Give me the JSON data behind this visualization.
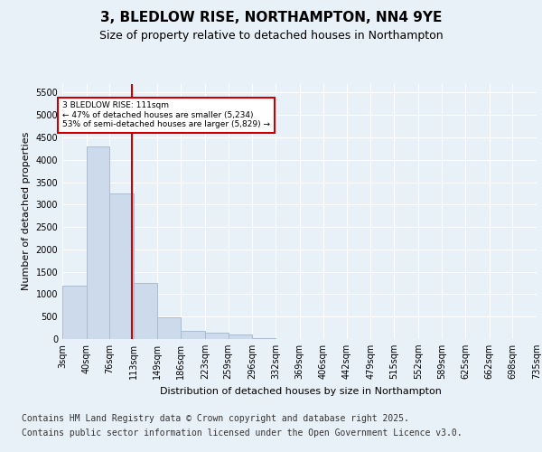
{
  "title_line1": "3, BLEDLOW RISE, NORTHAMPTON, NN4 9YE",
  "title_line2": "Size of property relative to detached houses in Northampton",
  "xlabel": "Distribution of detached houses by size in Northampton",
  "ylabel": "Number of detached properties",
  "bar_color": "#ccdaeb",
  "bar_edgecolor": "#aabcce",
  "bins": [
    3,
    40,
    76,
    113,
    149,
    186,
    223,
    259,
    296,
    332,
    369,
    406,
    442,
    479,
    515,
    552,
    589,
    625,
    662,
    698,
    735
  ],
  "bin_labels": [
    "3sqm",
    "40sqm",
    "76sqm",
    "113sqm",
    "149sqm",
    "186sqm",
    "223sqm",
    "259sqm",
    "296sqm",
    "332sqm",
    "369sqm",
    "406sqm",
    "442sqm",
    "479sqm",
    "515sqm",
    "552sqm",
    "589sqm",
    "625sqm",
    "662sqm",
    "698sqm",
    "735sqm"
  ],
  "counts": [
    1200,
    4300,
    3250,
    1250,
    480,
    190,
    140,
    100,
    30,
    0,
    0,
    0,
    0,
    0,
    0,
    0,
    0,
    0,
    0,
    0
  ],
  "ylim": [
    0,
    5700
  ],
  "yticks": [
    0,
    500,
    1000,
    1500,
    2000,
    2500,
    3000,
    3500,
    4000,
    4500,
    5000,
    5500
  ],
  "property_line_x": 111,
  "annotation_text": "3 BLEDLOW RISE: 111sqm\n← 47% of detached houses are smaller (5,234)\n53% of semi-detached houses are larger (5,829) →",
  "annotation_box_color": "#ffffff",
  "annotation_box_edgecolor": "#cc0000",
  "red_line_color": "#cc0000",
  "footer_line1": "Contains HM Land Registry data © Crown copyright and database right 2025.",
  "footer_line2": "Contains public sector information licensed under the Open Government Licence v3.0.",
  "background_color": "#e8f0f8",
  "plot_background": "#e8f0f8",
  "title_fontsize": 11,
  "subtitle_fontsize": 9,
  "tick_fontsize": 7,
  "footer_fontsize": 7,
  "ylabel_fontsize": 8,
  "xlabel_fontsize": 8
}
